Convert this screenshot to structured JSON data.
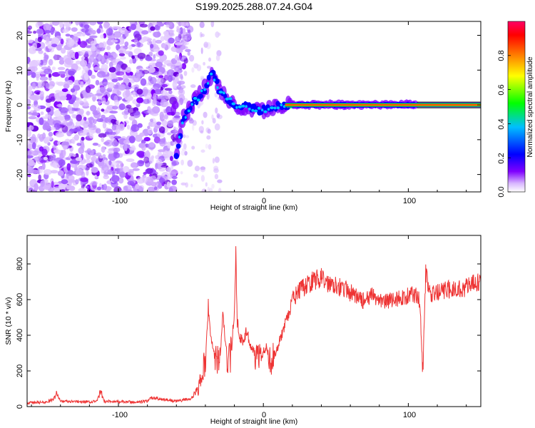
{
  "chart_data": [
    {
      "type": "heatmap",
      "title": "S199.2025.288.07.24.G04",
      "xlabel": "Height of straight line (km)",
      "ylabel": "Frequency (Hz)",
      "xlim": [
        -163,
        150
      ],
      "ylim": [
        -25,
        24
      ],
      "xticks": [
        -100,
        0,
        100
      ],
      "yticks": [
        -20,
        -10,
        0,
        10,
        20
      ],
      "colorbar": {
        "label": "Normalized spectral amplitude",
        "range": [
          0,
          1
        ],
        "ticks": [
          0.0,
          0.2,
          0.4,
          0.6,
          0.8
        ],
        "ticklabels": [
          "0.0",
          "0.2",
          "0.4",
          "0.6",
          "0.8"
        ],
        "colors": [
          "#ffffff",
          "#d8b6ff",
          "#7f00ff",
          "#0000ff",
          "#00bfff",
          "#00ff00",
          "#ffff00",
          "#ff8000",
          "#ff0000",
          "#ff0066"
        ]
      },
      "ridge": [
        {
          "x": -60,
          "f": -14
        },
        {
          "x": -55,
          "f": -4
        },
        {
          "x": -50,
          "f": 0
        },
        {
          "x": -45,
          "f": 2
        },
        {
          "x": -40,
          "f": 5
        },
        {
          "x": -35,
          "f": 9
        },
        {
          "x": -30,
          "f": 4
        },
        {
          "x": -25,
          "f": 2
        },
        {
          "x": -20,
          "f": 0
        },
        {
          "x": -10,
          "f": -1
        },
        {
          "x": 0,
          "f": -1.5
        },
        {
          "x": 10,
          "f": -0.5
        },
        {
          "x": 20,
          "f": 0
        },
        {
          "x": 100,
          "f": 0
        },
        {
          "x": 150,
          "f": 0
        }
      ]
    },
    {
      "type": "line",
      "xlabel": "Height of straight line (km)",
      "ylabel": "SNR (10 * v/v)",
      "xlim": [
        -163,
        150
      ],
      "ylim": [
        0,
        960
      ],
      "xticks": [
        -100,
        0,
        100
      ],
      "yticks": [
        0,
        200,
        400,
        600,
        800
      ],
      "color": "#ee3333",
      "series": [
        {
          "name": "SNR",
          "x": [
            -163,
            -150,
            -145,
            -143,
            -140,
            -120,
            -115,
            -112,
            -110,
            -90,
            -80,
            -78,
            -60,
            -50,
            -45,
            -40,
            -38,
            -36,
            -34,
            -32,
            -30,
            -28,
            -26,
            -24,
            -22,
            -20,
            -19,
            -18,
            -16,
            -14,
            -12,
            -10,
            -8,
            -6,
            -4,
            -2,
            0,
            2,
            4,
            6,
            8,
            10,
            12,
            14,
            16,
            18,
            20,
            25,
            30,
            35,
            40,
            45,
            50,
            55,
            60,
            65,
            70,
            75,
            80,
            85,
            90,
            95,
            100,
            105,
            107,
            108,
            109,
            110,
            112,
            115,
            120,
            125,
            130,
            135,
            140,
            145,
            150
          ],
          "values": [
            20,
            25,
            40,
            80,
            30,
            25,
            30,
            85,
            30,
            25,
            30,
            50,
            30,
            45,
            90,
            260,
            560,
            380,
            300,
            250,
            270,
            520,
            330,
            260,
            300,
            550,
            880,
            470,
            390,
            360,
            420,
            380,
            330,
            300,
            290,
            270,
            310,
            330,
            280,
            260,
            300,
            330,
            390,
            430,
            480,
            530,
            600,
            650,
            680,
            710,
            720,
            690,
            690,
            660,
            640,
            610,
            590,
            620,
            600,
            590,
            600,
            610,
            620,
            630,
            610,
            580,
            380,
            220,
            760,
            620,
            640,
            650,
            660,
            660,
            670,
            690,
            700
          ]
        }
      ]
    }
  ]
}
